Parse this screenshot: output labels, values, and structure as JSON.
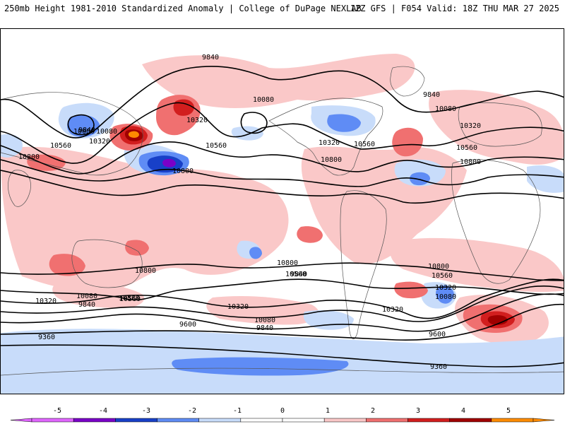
{
  "header": {
    "title_left": "250mb Height 1981-2010 Standardized Anomaly | College of DuPage NEXLAB",
    "title_right": "12Z GFS | F054 Valid: 18Z THU MAR 27 2025"
  },
  "colors": {
    "anom_m5": "#e066ff",
    "anom_m4": "#7a00c8",
    "anom_m3": "#1840c8",
    "anom_m2": "#5f8cf5",
    "anom_m1": "#c8dcfa",
    "anom_0": "#ffffff",
    "anom_p1": "#fac8c8",
    "anom_p2": "#f07070",
    "anom_p3": "#d21e1e",
    "anom_p4": "#a00000",
    "anom_p5": "#ff8c00",
    "contour": "#000000",
    "coast": "#555555"
  },
  "contours": {
    "labels": [
      {
        "text": "9840"
      },
      {
        "text": "10080"
      },
      {
        "text": "9840"
      },
      {
        "text": "10080"
      },
      {
        "text": "10320"
      },
      {
        "text": "10560"
      },
      {
        "text": "10800"
      },
      {
        "text": "10320"
      },
      {
        "text": "10560"
      },
      {
        "text": "10800"
      },
      {
        "text": "10080"
      },
      {
        "text": "10320"
      },
      {
        "text": "10560"
      },
      {
        "text": "10800"
      },
      {
        "text": "9840"
      },
      {
        "text": "10080"
      },
      {
        "text": "10320"
      },
      {
        "text": "10560"
      },
      {
        "text": "10800"
      },
      {
        "text": "10800"
      },
      {
        "text": "10560"
      },
      {
        "text": "10320"
      },
      {
        "text": "10080"
      },
      {
        "text": "9840"
      },
      {
        "text": "10320"
      },
      {
        "text": "10560"
      },
      {
        "text": "10080"
      },
      {
        "text": "9840"
      },
      {
        "text": "9600"
      },
      {
        "text": "10800"
      },
      {
        "text": "10560"
      },
      {
        "text": "10080"
      },
      {
        "text": "9840"
      },
      {
        "text": "10320"
      },
      {
        "text": "9600"
      },
      {
        "text": "9360"
      },
      {
        "text": "9360"
      },
      {
        "text": "10800"
      },
      {
        "text": "10560"
      },
      {
        "text": "10320"
      }
    ]
  },
  "colorbar": {
    "ticks": [
      "-5",
      "-4",
      "-3",
      "-2",
      "-1",
      "0",
      "1",
      "2",
      "3",
      "4",
      "5"
    ]
  }
}
